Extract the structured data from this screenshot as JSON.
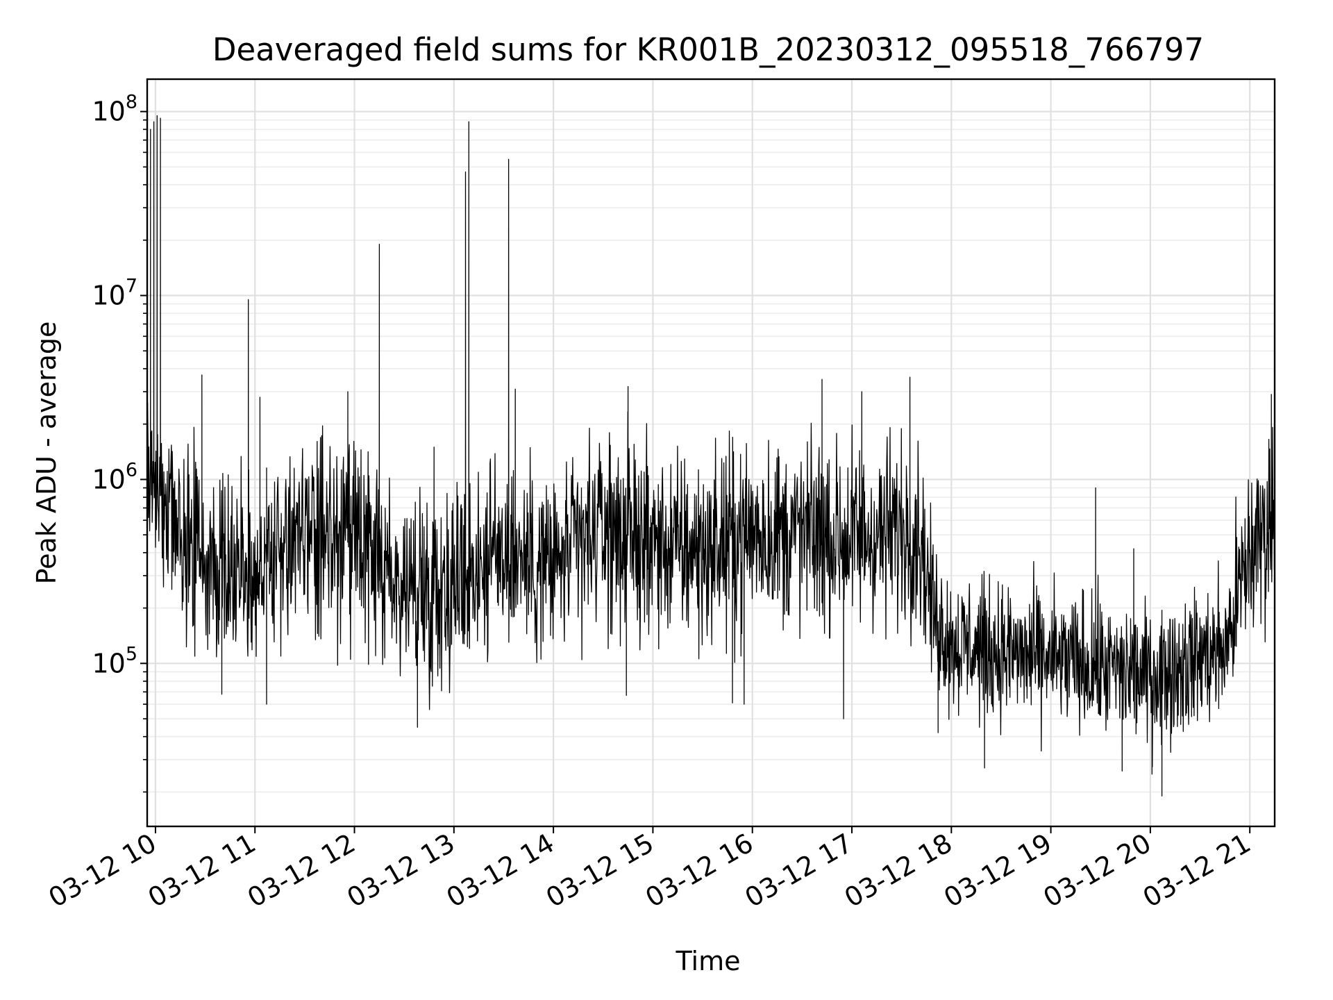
{
  "chart_data": {
    "type": "line",
    "title": "Deaveraged field sums for KR001B_20230312_095518_766797",
    "xlabel": "Time",
    "ylabel": "Peak ADU - average",
    "xscale": "time",
    "yscale": "log",
    "xlim": [
      "2023-03-12 09:55",
      "2023-03-12 21:15"
    ],
    "ylim": [
      13000,
      150000000
    ],
    "x_tick_labels": [
      "03-12 10",
      "03-12 11",
      "03-12 12",
      "03-12 13",
      "03-12 14",
      "03-12 15",
      "03-12 16",
      "03-12 17",
      "03-12 18",
      "03-12 19",
      "03-12 20",
      "03-12 21"
    ],
    "y_ticks": [
      {
        "base": "10",
        "exp": "5",
        "value": 100000
      },
      {
        "base": "10",
        "exp": "6",
        "value": 1000000
      },
      {
        "base": "10",
        "exp": "7",
        "value": 10000000
      },
      {
        "base": "10",
        "exp": "8",
        "value": 100000000
      }
    ],
    "grid": true,
    "series": [
      {
        "color": "#000000",
        "baseline": [
          {
            "x": "2023-03-12 09:55",
            "y": 1500000
          },
          {
            "x": "2023-03-12 10:05",
            "y": 700000
          },
          {
            "x": "2023-03-12 10:30",
            "y": 350000
          },
          {
            "x": "2023-03-12 11:00",
            "y": 330000
          },
          {
            "x": "2023-03-12 11:30",
            "y": 500000
          },
          {
            "x": "2023-03-12 12:00",
            "y": 450000
          },
          {
            "x": "2023-03-12 12:30",
            "y": 250000
          },
          {
            "x": "2023-03-12 13:00",
            "y": 280000
          },
          {
            "x": "2023-03-12 13:30",
            "y": 420000
          },
          {
            "x": "2023-03-12 14:00",
            "y": 330000
          },
          {
            "x": "2023-03-12 14:30",
            "y": 550000
          },
          {
            "x": "2023-03-12 15:00",
            "y": 450000
          },
          {
            "x": "2023-03-12 15:30",
            "y": 400000
          },
          {
            "x": "2023-03-12 16:00",
            "y": 520000
          },
          {
            "x": "2023-03-12 16:30",
            "y": 500000
          },
          {
            "x": "2023-03-12 17:00",
            "y": 480000
          },
          {
            "x": "2023-03-12 17:40",
            "y": 550000
          },
          {
            "x": "2023-03-12 17:50",
            "y": 180000
          },
          {
            "x": "2023-03-12 18:00",
            "y": 130000
          },
          {
            "x": "2023-03-12 18:30",
            "y": 115000
          },
          {
            "x": "2023-03-12 19:00",
            "y": 105000
          },
          {
            "x": "2023-03-12 19:30",
            "y": 95000
          },
          {
            "x": "2023-03-12 20:00",
            "y": 85000
          },
          {
            "x": "2023-03-12 20:20",
            "y": 100000
          },
          {
            "x": "2023-03-12 20:45",
            "y": 120000
          },
          {
            "x": "2023-03-12 21:00",
            "y": 400000
          },
          {
            "x": "2023-03-12 21:15",
            "y": 650000
          }
        ],
        "peaks": [
          {
            "x": "2023-03-12 09:57",
            "y": 80000000
          },
          {
            "x": "2023-03-12 09:59",
            "y": 88000000
          },
          {
            "x": "2023-03-12 10:01",
            "y": 95000000
          },
          {
            "x": "2023-03-12 10:03",
            "y": 92000000
          },
          {
            "x": "2023-03-12 10:28",
            "y": 3700000
          },
          {
            "x": "2023-03-12 10:56",
            "y": 9500000
          },
          {
            "x": "2023-03-12 11:03",
            "y": 2800000
          },
          {
            "x": "2023-03-12 11:56",
            "y": 3000000
          },
          {
            "x": "2023-03-12 12:15",
            "y": 19000000
          },
          {
            "x": "2023-03-12 12:48",
            "y": 1500000
          },
          {
            "x": "2023-03-12 13:07",
            "y": 47000000
          },
          {
            "x": "2023-03-12 13:09",
            "y": 88000000
          },
          {
            "x": "2023-03-12 13:33",
            "y": 55000000
          },
          {
            "x": "2023-03-12 13:37",
            "y": 3100000
          },
          {
            "x": "2023-03-12 14:45",
            "y": 3200000
          },
          {
            "x": "2023-03-12 16:42",
            "y": 3500000
          },
          {
            "x": "2023-03-12 17:06",
            "y": 3000000
          },
          {
            "x": "2023-03-12 17:35",
            "y": 3600000
          },
          {
            "x": "2023-03-12 19:27",
            "y": 900000
          },
          {
            "x": "2023-03-12 19:50",
            "y": 420000
          },
          {
            "x": "2023-03-12 21:13",
            "y": 2900000
          }
        ],
        "dips": [
          {
            "x": "2023-03-12 10:40",
            "y": 68000
          },
          {
            "x": "2023-03-12 11:07",
            "y": 60000
          },
          {
            "x": "2023-03-12 12:38",
            "y": 45000
          },
          {
            "x": "2023-03-12 14:44",
            "y": 67000
          },
          {
            "x": "2023-03-12 15:48",
            "y": 61000
          },
          {
            "x": "2023-03-12 15:55",
            "y": 60000
          },
          {
            "x": "2023-03-12 16:55",
            "y": 50000
          },
          {
            "x": "2023-03-12 17:52",
            "y": 42000
          },
          {
            "x": "2023-03-12 18:20",
            "y": 27000
          },
          {
            "x": "2023-03-12 19:43",
            "y": 26000
          },
          {
            "x": "2023-03-12 20:01",
            "y": 25000
          },
          {
            "x": "2023-03-12 20:07",
            "y": 19000
          }
        ]
      }
    ]
  }
}
